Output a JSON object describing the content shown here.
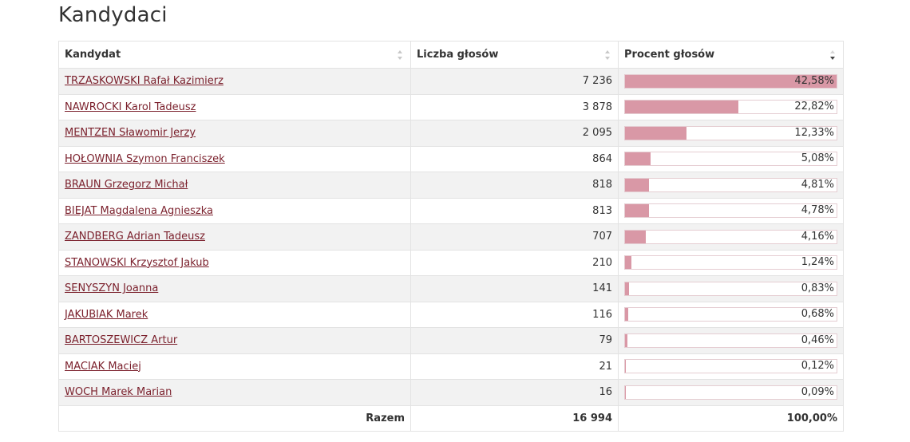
{
  "page": {
    "title": "Kandydaci"
  },
  "table": {
    "headers": {
      "candidate": "Kandydat",
      "votes": "Liczba głosów",
      "percent": "Procent głosów"
    },
    "sort": {
      "column": "percent",
      "direction": "desc"
    },
    "rows": [
      {
        "name": "TRZASKOWSKI Rafał Kazimierz",
        "votes": "7 236",
        "percent": "42,58%",
        "share": 42.58
      },
      {
        "name": "NAWROCKI Karol Tadeusz",
        "votes": "3 878",
        "percent": "22,82%",
        "share": 22.82
      },
      {
        "name": "MENTZEN Sławomir Jerzy",
        "votes": "2 095",
        "percent": "12,33%",
        "share": 12.33
      },
      {
        "name": "HOŁOWNIA Szymon Franciszek",
        "votes": "864",
        "percent": "5,08%",
        "share": 5.08
      },
      {
        "name": "BRAUN Grzegorz Michał",
        "votes": "818",
        "percent": "4,81%",
        "share": 4.81
      },
      {
        "name": "BIEJAT Magdalena Agnieszka",
        "votes": "813",
        "percent": "4,78%",
        "share": 4.78
      },
      {
        "name": "ZANDBERG Adrian Tadeusz",
        "votes": "707",
        "percent": "4,16%",
        "share": 4.16
      },
      {
        "name": "STANOWSKI Krzysztof Jakub",
        "votes": "210",
        "percent": "1,24%",
        "share": 1.24
      },
      {
        "name": "SENYSZYN Joanna",
        "votes": "141",
        "percent": "0,83%",
        "share": 0.83
      },
      {
        "name": "JAKUBIAK Marek",
        "votes": "116",
        "percent": "0,68%",
        "share": 0.68
      },
      {
        "name": "BARTOSZEWICZ Artur",
        "votes": "79",
        "percent": "0,46%",
        "share": 0.46
      },
      {
        "name": "MACIAK Maciej",
        "votes": "21",
        "percent": "0,12%",
        "share": 0.12
      },
      {
        "name": "WOCH Marek Marian",
        "votes": "16",
        "percent": "0,09%",
        "share": 0.09
      }
    ],
    "totals": {
      "label": "Razem",
      "votes": "16 994",
      "percent": "100,00%"
    },
    "bar_scale_max": 42.58
  },
  "colors": {
    "bar_fill": "#d998a6",
    "link": "#7a1f2b",
    "stripe": "#f2f2f2"
  },
  "icons": {
    "sort_neutral": "sort-icon",
    "sort_desc": "sort-desc-icon"
  }
}
